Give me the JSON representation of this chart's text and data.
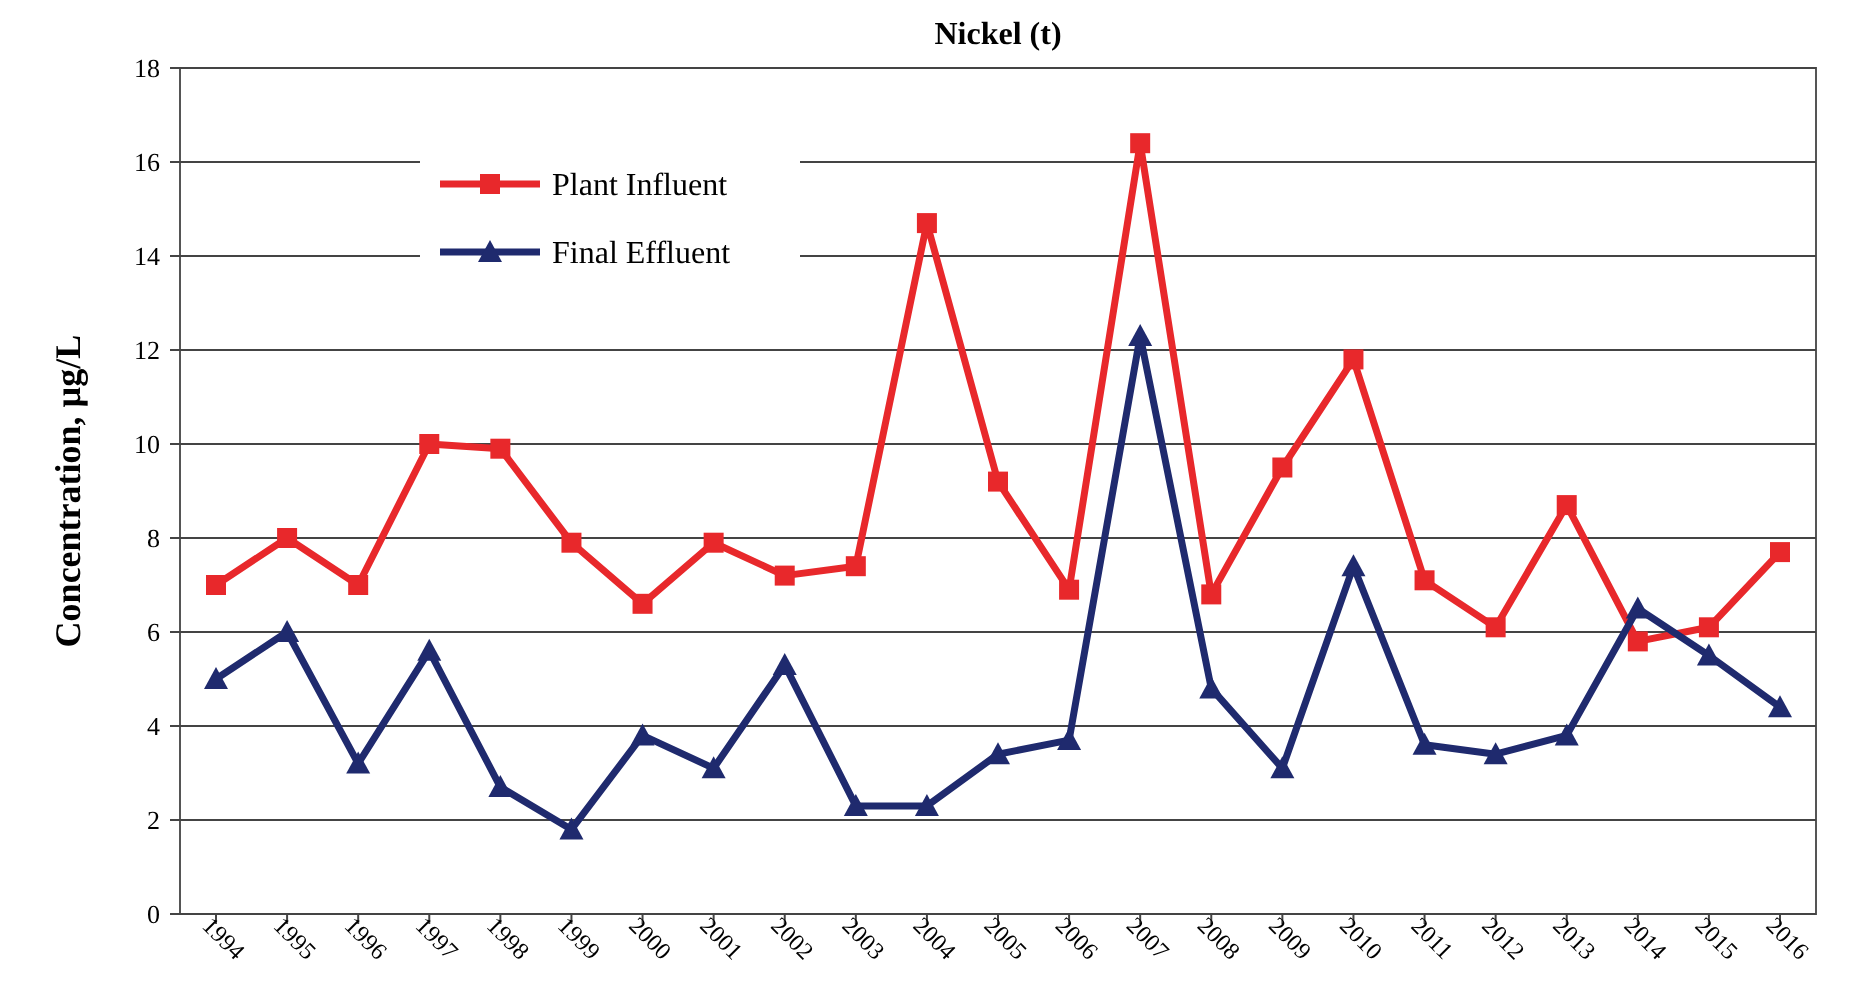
{
  "chart_data": {
    "type": "line",
    "title": "Nickel (t)",
    "ylabel": "Concentration, µg/L",
    "categories": [
      "1994",
      "1995",
      "1996",
      "1997",
      "1998",
      "1999",
      "2000",
      "2001",
      "2002",
      "2003",
      "2004",
      "2005",
      "2006",
      "2007",
      "2008",
      "2009",
      "2010",
      "2011",
      "2012",
      "2013",
      "2014",
      "2015",
      "2016"
    ],
    "series": [
      {
        "name": "Plant Influent",
        "color": "#e8282b",
        "marker": "square",
        "values": [
          7.0,
          8.0,
          7.0,
          10.0,
          9.9,
          7.9,
          6.6,
          7.9,
          7.2,
          7.4,
          14.7,
          9.2,
          6.9,
          16.4,
          6.8,
          9.5,
          11.8,
          7.1,
          6.1,
          8.7,
          5.8,
          6.1,
          7.7
        ]
      },
      {
        "name": "Final Effluent",
        "color": "#1f2a6e",
        "marker": "triangle",
        "values": [
          5.0,
          6.0,
          3.2,
          5.6,
          2.7,
          1.8,
          3.8,
          3.1,
          5.3,
          2.3,
          2.3,
          3.4,
          3.7,
          12.3,
          4.8,
          3.1,
          7.4,
          3.6,
          3.4,
          3.8,
          6.5,
          5.5,
          4.4
        ]
      }
    ],
    "ylim": [
      0,
      18
    ],
    "yticks": [
      0,
      2,
      4,
      6,
      8,
      10,
      12,
      14,
      16,
      18
    ],
    "grid": "y",
    "legend": "top left"
  }
}
